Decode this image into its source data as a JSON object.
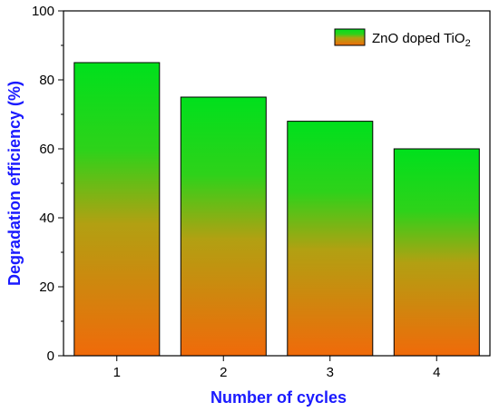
{
  "chart_data": {
    "type": "bar",
    "categories": [
      "1",
      "2",
      "3",
      "4"
    ],
    "values": [
      85,
      75,
      68,
      60
    ],
    "series": [
      {
        "name": "ZnO doped TiO",
        "values": [
          85,
          75,
          68,
          60
        ]
      }
    ],
    "legend_subscript": "2",
    "xlabel": "Number of cycles",
    "ylabel": "Degradation efficiency (%)",
    "ylim": [
      0,
      100
    ],
    "yticks": [
      "0",
      "20",
      "40",
      "60",
      "80",
      "100"
    ],
    "grid": false,
    "legend_position": "top-right",
    "colors": {
      "top": "#00e01c",
      "bottom": "#f06a0a",
      "axis_title": "#1a1aff"
    }
  }
}
